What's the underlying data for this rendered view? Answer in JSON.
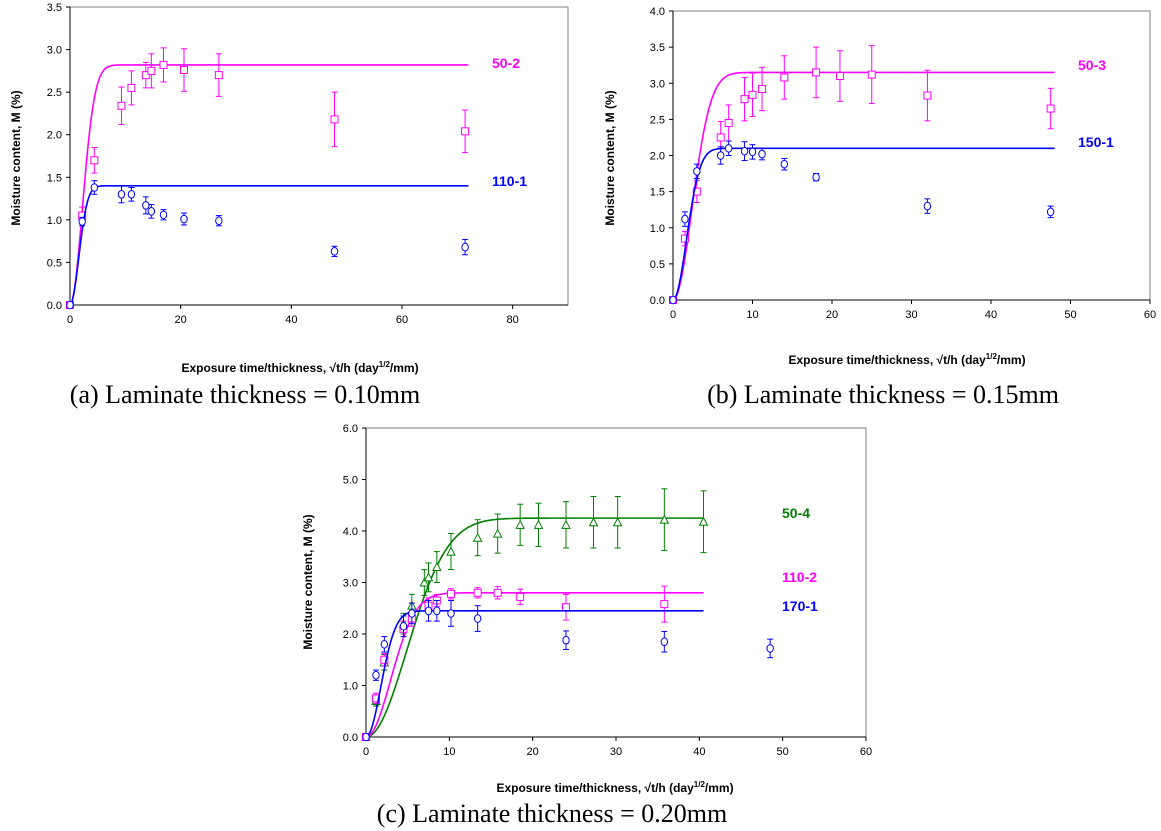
{
  "chart_data": [
    {
      "type": "scatter",
      "caption": "(a) Laminate thickness = 0.10mm",
      "xlabel_main": "Exposure time/thickness, ",
      "xlabel_sqrt": "√t/h",
      "xlabel_unit": " (day",
      "xlabel_sup": "1/2",
      "xlabel_end": "/mm)",
      "ylabel": "Moisture content, M (%)",
      "xlim": [
        0,
        90
      ],
      "ylim": [
        0,
        3.5
      ],
      "xticks": [
        0,
        20,
        40,
        60,
        80
      ],
      "yticks": [
        0,
        0.5,
        1.0,
        1.5,
        2.0,
        2.5,
        3.0,
        3.5
      ],
      "ytick_labels": [
        "0.0",
        "0.5",
        "1.0",
        "1.5",
        "2.0",
        "2.5",
        "3.0",
        "3.5"
      ],
      "xtick_labels": [
        "0",
        "20",
        "40",
        "60",
        "80"
      ],
      "series": [
        {
          "name": "50-2",
          "color": "#ff00ff",
          "marker": "square",
          "fit": {
            "Mm": 2.82,
            "k": 0.32,
            "xmax": 72
          },
          "points": [
            [
              0,
              0,
              0
            ],
            [
              2.2,
              1.05,
              0.1
            ],
            [
              4.4,
              1.7,
              0.15
            ],
            [
              9.3,
              2.34,
              0.22
            ],
            [
              11.1,
              2.55,
              0.2
            ],
            [
              13.7,
              2.7,
              0.15
            ],
            [
              14.7,
              2.75,
              0.2
            ],
            [
              16.9,
              2.82,
              0.2
            ],
            [
              20.6,
              2.76,
              0.25
            ],
            [
              26.9,
              2.7,
              0.25
            ],
            [
              47.8,
              2.18,
              0.32
            ],
            [
              71.4,
              2.04,
              0.25
            ]
          ]
        },
        {
          "name": "110-1",
          "color": "#0000ff",
          "marker": "circle",
          "fit": {
            "Mm": 1.4,
            "k": 0.45,
            "xmax": 72
          },
          "points": [
            [
              0,
              0,
              0
            ],
            [
              2.2,
              0.98,
              0.05
            ],
            [
              4.4,
              1.38,
              0.08
            ],
            [
              9.3,
              1.3,
              0.1
            ],
            [
              11.1,
              1.3,
              0.08
            ],
            [
              13.7,
              1.17,
              0.1
            ],
            [
              14.7,
              1.1,
              0.08
            ],
            [
              16.9,
              1.06,
              0.06
            ],
            [
              20.6,
              1.01,
              0.07
            ],
            [
              26.9,
              0.99,
              0.06
            ],
            [
              47.8,
              0.63,
              0.06
            ],
            [
              71.4,
              0.68,
              0.09
            ]
          ]
        }
      ]
    },
    {
      "type": "scatter",
      "caption": "(b) Laminate thickness = 0.15mm",
      "xlabel_main": "Exposure time/thickness, ",
      "xlabel_sqrt": "√t/h",
      "xlabel_unit": " (day",
      "xlabel_sup": "1/2",
      "xlabel_end": "/mm)",
      "ylabel": "Moisture content, M (%)",
      "xlim": [
        0,
        60
      ],
      "ylim": [
        0,
        4.0
      ],
      "xticks": [
        0,
        10,
        20,
        30,
        40,
        50,
        60
      ],
      "yticks": [
        0,
        0.5,
        1.0,
        1.5,
        2.0,
        2.5,
        3.0,
        3.5,
        4.0
      ],
      "ytick_labels": [
        "0.0",
        "0.5",
        "1.0",
        "1.5",
        "2.0",
        "2.5",
        "3.0",
        "3.5",
        "4.0"
      ],
      "xtick_labels": [
        "0",
        "10",
        "20",
        "30",
        "40",
        "50",
        "60"
      ],
      "series": [
        {
          "name": "50-3",
          "color": "#ff00ff",
          "marker": "square",
          "fit": {
            "Mm": 3.15,
            "k": 0.3,
            "xmax": 48
          },
          "points": [
            [
              0,
              0,
              0
            ],
            [
              1.5,
              0.85,
              0.1
            ],
            [
              3.0,
              1.5,
              0.15
            ],
            [
              6.0,
              2.25,
              0.22
            ],
            [
              7.0,
              2.45,
              0.25
            ],
            [
              9.0,
              2.78,
              0.3
            ],
            [
              10.0,
              2.84,
              0.3
            ],
            [
              11.2,
              2.92,
              0.3
            ],
            [
              14.0,
              3.08,
              0.3
            ],
            [
              18.0,
              3.15,
              0.35
            ],
            [
              21.0,
              3.1,
              0.35
            ],
            [
              25.0,
              3.12,
              0.4
            ],
            [
              32.0,
              2.83,
              0.35
            ],
            [
              47.5,
              2.65,
              0.28
            ]
          ]
        },
        {
          "name": "150-1",
          "color": "#0000ff",
          "marker": "circle",
          "fit": {
            "Mm": 2.1,
            "k": 0.42,
            "xmax": 48
          },
          "points": [
            [
              0,
              0,
              0
            ],
            [
              1.5,
              1.12,
              0.1
            ],
            [
              3.0,
              1.78,
              0.1
            ],
            [
              6.0,
              2.0,
              0.12
            ],
            [
              7.0,
              2.1,
              0.1
            ],
            [
              9.0,
              2.06,
              0.13
            ],
            [
              10.0,
              2.05,
              0.1
            ],
            [
              11.2,
              2.02,
              0.08
            ],
            [
              14.0,
              1.88,
              0.08
            ],
            [
              18.0,
              1.7,
              0.05
            ],
            [
              32.0,
              1.3,
              0.1
            ],
            [
              47.5,
              1.22,
              0.08
            ]
          ]
        }
      ]
    },
    {
      "type": "scatter",
      "caption": "(c) Laminate thickness = 0.20mm",
      "xlabel_main": "Exposure time/thickness, ",
      "xlabel_sqrt": "√t/h",
      "xlabel_unit": " (day",
      "xlabel_sup": "1/2",
      "xlabel_end": "/mm)",
      "ylabel": "Moisture content, M (%)",
      "xlim": [
        0,
        60
      ],
      "ylim": [
        0,
        6.0
      ],
      "xticks": [
        0,
        10,
        20,
        30,
        40,
        50,
        60
      ],
      "yticks": [
        0,
        1,
        2,
        3,
        4,
        5,
        6
      ],
      "ytick_labels": [
        "0.0",
        "1.0",
        "2.0",
        "3.0",
        "4.0",
        "5.0",
        "6.0"
      ],
      "xtick_labels": [
        "0",
        "10",
        "20",
        "30",
        "40",
        "50",
        "60"
      ],
      "series": [
        {
          "name": "50-4",
          "color": "#008000",
          "marker": "triangle",
          "fit": {
            "Mm": 4.25,
            "k": 0.145,
            "xmax": 40.5
          },
          "points": [
            [
              0,
              0,
              0
            ],
            [
              1.2,
              0.7,
              0.1
            ],
            [
              2.2,
              1.45,
              0.15
            ],
            [
              4.5,
              2.2,
              0.2
            ],
            [
              5.5,
              2.55,
              0.22
            ],
            [
              7.0,
              3.0,
              0.25
            ],
            [
              7.5,
              3.1,
              0.28
            ],
            [
              8.5,
              3.3,
              0.3
            ],
            [
              10.2,
              3.6,
              0.35
            ],
            [
              13.4,
              3.87,
              0.35
            ],
            [
              15.8,
              3.95,
              0.38
            ],
            [
              18.5,
              4.12,
              0.4
            ],
            [
              20.7,
              4.12,
              0.42
            ],
            [
              24.0,
              4.12,
              0.45
            ],
            [
              27.3,
              4.17,
              0.5
            ],
            [
              30.2,
              4.17,
              0.5
            ],
            [
              35.8,
              4.22,
              0.6
            ],
            [
              40.5,
              4.18,
              0.6
            ]
          ]
        },
        {
          "name": "110-2",
          "color": "#ff00ff",
          "marker": "square",
          "fit": {
            "Mm": 2.8,
            "k": 0.24,
            "xmax": 40.5
          },
          "points": [
            [
              0,
              0,
              0
            ],
            [
              1.2,
              0.75,
              0.1
            ],
            [
              2.2,
              1.5,
              0.12
            ],
            [
              4.5,
              2.1,
              0.15
            ],
            [
              5.5,
              2.3,
              0.15
            ],
            [
              7.5,
              2.55,
              0.15
            ],
            [
              8.5,
              2.65,
              0.12
            ],
            [
              10.2,
              2.78,
              0.1
            ],
            [
              13.4,
              2.8,
              0.1
            ],
            [
              15.8,
              2.8,
              0.12
            ],
            [
              18.5,
              2.72,
              0.15
            ],
            [
              24.0,
              2.52,
              0.25
            ],
            [
              35.8,
              2.58,
              0.35
            ]
          ]
        },
        {
          "name": "170-1",
          "color": "#0000ff",
          "marker": "circle",
          "fit": {
            "Mm": 2.45,
            "k": 0.4,
            "xmax": 40.5
          },
          "points": [
            [
              0,
              0,
              0
            ],
            [
              1.2,
              1.2,
              0.1
            ],
            [
              2.2,
              1.8,
              0.15
            ],
            [
              4.5,
              2.15,
              0.2
            ],
            [
              5.5,
              2.4,
              0.2
            ],
            [
              7.5,
              2.45,
              0.2
            ],
            [
              8.5,
              2.45,
              0.2
            ],
            [
              10.2,
              2.4,
              0.25
            ],
            [
              13.4,
              2.3,
              0.25
            ],
            [
              24.0,
              1.88,
              0.18
            ],
            [
              35.8,
              1.85,
              0.2
            ],
            [
              48.5,
              1.72,
              0.18
            ]
          ]
        }
      ]
    }
  ]
}
